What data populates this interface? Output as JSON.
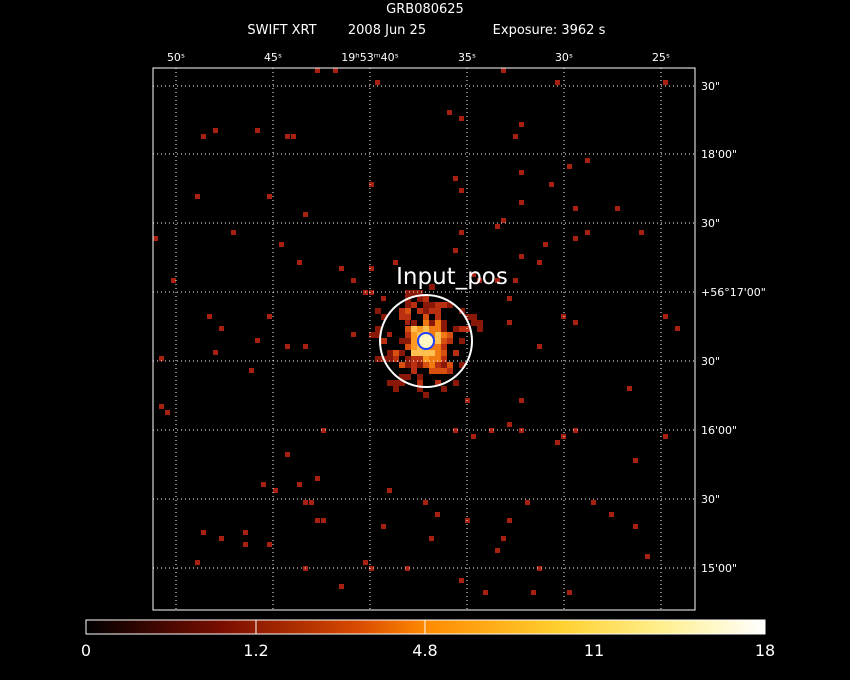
{
  "header": {
    "title": "GRB080625",
    "instrument": "SWIFT XRT",
    "date": "2008 Jun 25",
    "exposure": "Exposure: 3962 s"
  },
  "top_axis": [
    "50ˢ",
    "45ˢ",
    "19ʰ53ᵐ40ˢ",
    "35ˢ",
    "30ˢ",
    "25ˢ"
  ],
  "right_axis": [
    "30\"",
    "18'00\"",
    "30\"",
    "+56°17'00\"",
    "30\"",
    "16'00\"",
    "30\"",
    "15'00\""
  ],
  "marker": {
    "label": "Input_pos"
  },
  "colorbar": {
    "ticks": [
      0,
      1.2,
      4.8,
      11,
      18
    ]
  }
}
